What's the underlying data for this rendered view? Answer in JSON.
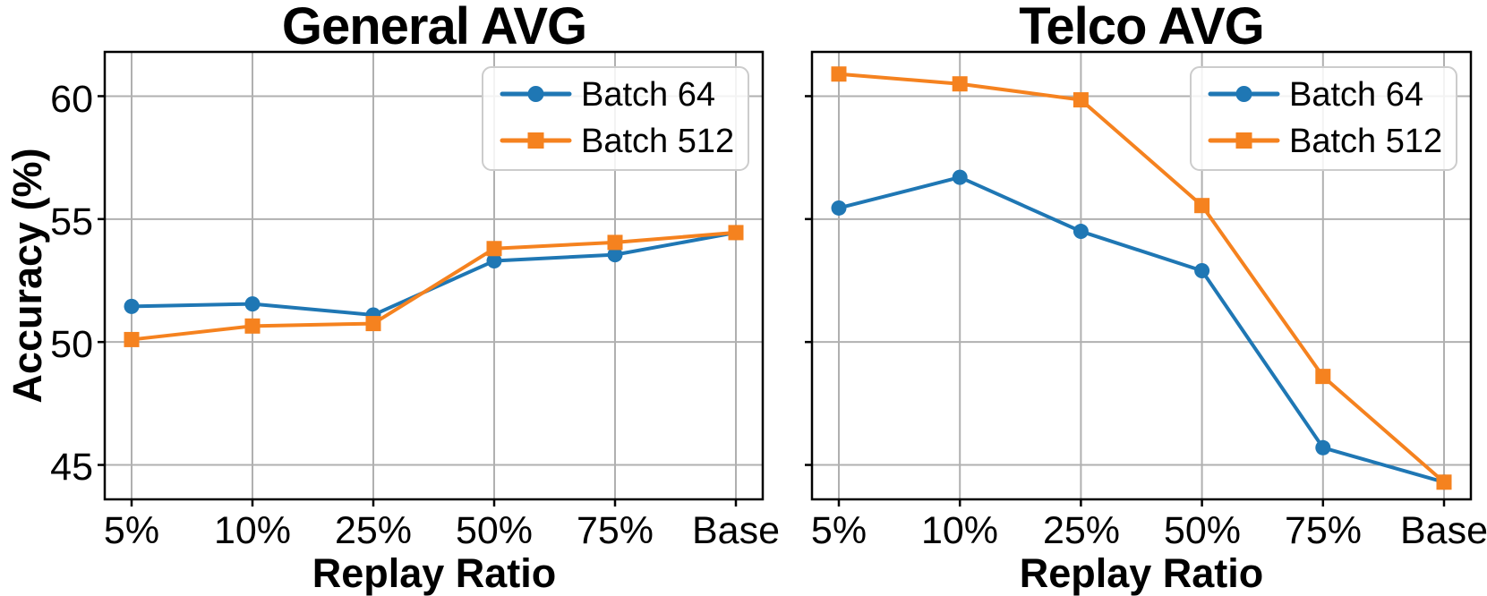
{
  "figure": {
    "background": "#ffffff",
    "accent_blue": "#1f77b4",
    "accent_orange": "#f5821f",
    "grid_color": "#b0b0b0",
    "spine_color": "#000000",
    "legend_border": "#cccccc"
  },
  "chart_data": [
    {
      "type": "line",
      "title": "General AVG",
      "xlabel": "Replay Ratio",
      "ylabel": "Accuracy (%)",
      "categories": [
        "5%",
        "10%",
        "25%",
        "50%",
        "75%",
        "Base"
      ],
      "yticks": [
        45,
        50,
        55,
        60
      ],
      "ylim": [
        43.6,
        61.8
      ],
      "grid": true,
      "legend_position": "upper right",
      "series": [
        {
          "name": "Batch 64",
          "color": "#1f77b4",
          "marker": "circle",
          "values": [
            51.45,
            51.55,
            51.1,
            53.3,
            53.55,
            54.45
          ]
        },
        {
          "name": "Batch 512",
          "color": "#f5821f",
          "marker": "square",
          "values": [
            50.1,
            50.65,
            50.75,
            53.8,
            54.05,
            54.45
          ]
        }
      ]
    },
    {
      "type": "line",
      "title": "Telco AVG",
      "xlabel": "Replay Ratio",
      "ylabel": "",
      "categories": [
        "5%",
        "10%",
        "25%",
        "50%",
        "75%",
        "Base"
      ],
      "yticks": [
        45,
        50,
        55,
        60
      ],
      "ylim": [
        43.6,
        61.8
      ],
      "grid": true,
      "legend_position": "upper right",
      "series": [
        {
          "name": "Batch 64",
          "color": "#1f77b4",
          "marker": "circle",
          "values": [
            55.45,
            56.7,
            54.5,
            52.9,
            45.7,
            44.3
          ]
        },
        {
          "name": "Batch 512",
          "color": "#f5821f",
          "marker": "square",
          "values": [
            60.9,
            60.5,
            59.85,
            55.55,
            48.6,
            44.3
          ]
        }
      ]
    }
  ]
}
